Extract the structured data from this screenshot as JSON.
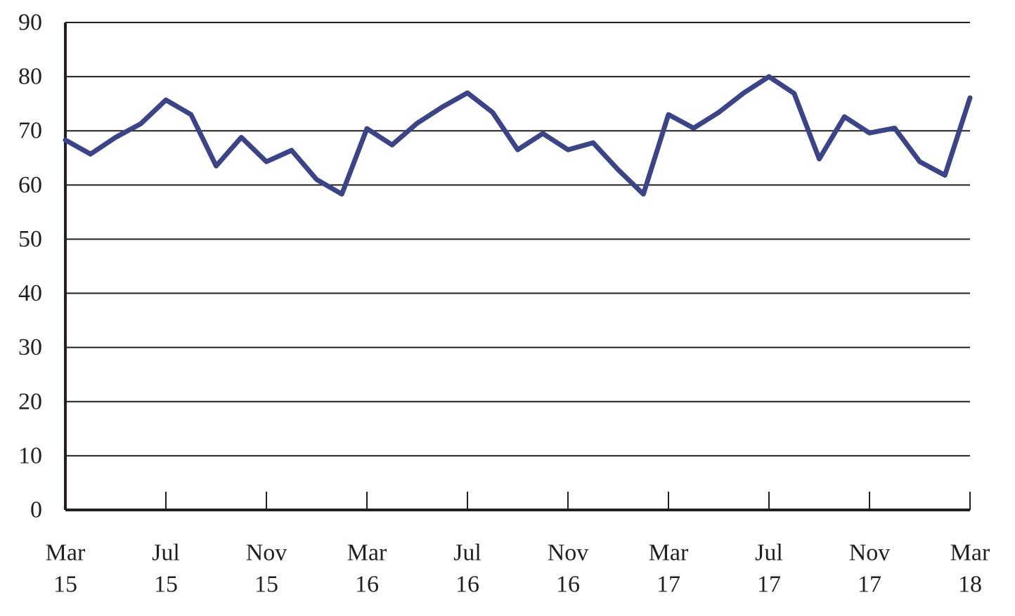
{
  "chart_data": {
    "type": "line",
    "title": "",
    "xlabel": "",
    "ylabel": "",
    "ylim": [
      0,
      90
    ],
    "yticks": [
      0,
      10,
      20,
      30,
      40,
      50,
      60,
      70,
      80,
      90
    ],
    "grid": true,
    "legend": "none",
    "line_color": "#3b4586",
    "x": [
      "Mar 15",
      "Apr 15",
      "May 15",
      "Jun 15",
      "Jul 15",
      "Aug 15",
      "Sep 15",
      "Oct 15",
      "Nov 15",
      "Dec 15",
      "Jan 16",
      "Feb 16",
      "Mar 16",
      "Apr 16",
      "May 16",
      "Jun 16",
      "Jul 16",
      "Aug 16",
      "Sep 16",
      "Oct 16",
      "Nov 16",
      "Dec 16",
      "Jan 17",
      "Feb 17",
      "Mar 17",
      "Apr 17",
      "May 17",
      "Jun 17",
      "Jul 17",
      "Aug 17",
      "Sep 17",
      "Oct 17",
      "Nov 17",
      "Dec 17",
      "Jan 18",
      "Feb 18",
      "Mar 18"
    ],
    "x_tick_labels": [
      {
        "index": 0,
        "month": "Mar",
        "year": "15"
      },
      {
        "index": 4,
        "month": "Jul",
        "year": "15"
      },
      {
        "index": 8,
        "month": "Nov",
        "year": "15"
      },
      {
        "index": 12,
        "month": "Mar",
        "year": "16"
      },
      {
        "index": 16,
        "month": "Jul",
        "year": "16"
      },
      {
        "index": 20,
        "month": "Nov",
        "year": "16"
      },
      {
        "index": 24,
        "month": "Mar",
        "year": "17"
      },
      {
        "index": 28,
        "month": "Jul",
        "year": "17"
      },
      {
        "index": 32,
        "month": "Nov",
        "year": "17"
      },
      {
        "index": 36,
        "month": "Mar",
        "year": "18"
      }
    ],
    "series": [
      {
        "values": [
          68.3,
          65.7,
          68.8,
          71.3,
          75.7,
          73.0,
          63.5,
          68.8,
          64.3,
          66.4,
          61.0,
          58.3,
          70.4,
          67.4,
          71.4,
          74.4,
          77.0,
          73.4,
          66.5,
          69.5,
          66.5,
          67.8,
          62.8,
          58.3,
          73.0,
          70.5,
          73.4,
          77.0,
          80.0,
          76.9,
          64.8,
          72.6,
          69.6,
          70.5,
          64.3,
          61.8,
          76.1
        ]
      }
    ]
  }
}
